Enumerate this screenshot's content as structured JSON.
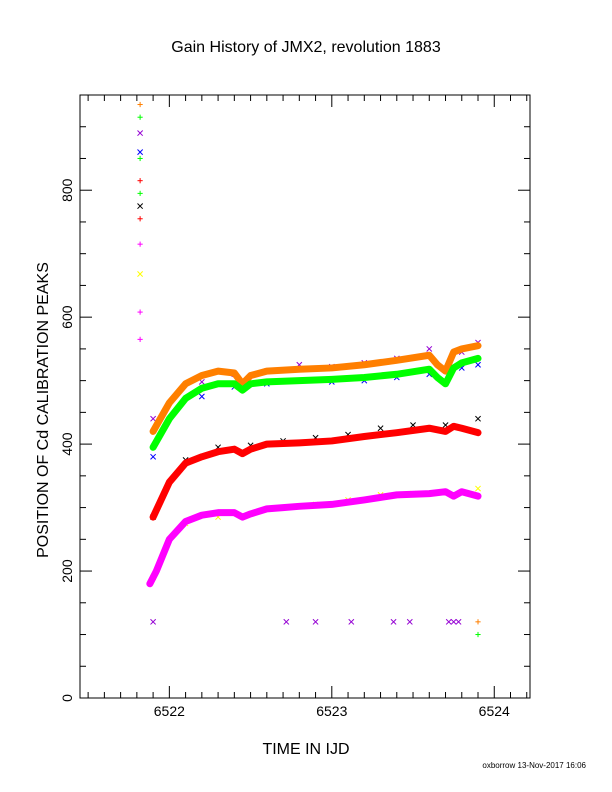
{
  "chart_data": {
    "type": "scatter",
    "title": "Gain History of JMX2, revolution 1883",
    "xlabel": "TIME IN IJD",
    "ylabel": "POSITION OF Cd CALIBRATION PEAKS",
    "xlim": [
      6521.45,
      6524.22
    ],
    "ylim": [
      0,
      950
    ],
    "xticks": [
      6522,
      6523,
      6524
    ],
    "yticks": [
      0,
      200,
      400,
      600,
      800
    ],
    "grid": false,
    "colors": {
      "orange": "#ff7f00",
      "purple": "#9400d3",
      "green": "#00ff00",
      "blue": "#0000ff",
      "red": "#ff0000",
      "black": "#000000",
      "magenta": "#ff00ff",
      "yellow": "#ffff00"
    },
    "series": [
      {
        "color": "purple",
        "marker": "x",
        "x": [
          6521.9,
          6522.2,
          6522.4,
          6522.6,
          6522.8,
          6523.0,
          6523.2,
          6523.4,
          6523.6,
          6523.8,
          6523.9
        ],
        "y": [
          440,
          498,
          510,
          515,
          525,
          522,
          528,
          535,
          550,
          545,
          560
        ]
      },
      {
        "color": "orange",
        "marker": "line",
        "x": [
          6521.9,
          6522.0,
          6522.1,
          6522.2,
          6522.3,
          6522.4,
          6522.45,
          6522.5,
          6522.6,
          6522.8,
          6523.0,
          6523.2,
          6523.4,
          6523.6,
          6523.65,
          6523.7,
          6523.75,
          6523.8,
          6523.9
        ],
        "y": [
          420,
          465,
          495,
          508,
          515,
          512,
          495,
          508,
          515,
          518,
          520,
          525,
          532,
          540,
          525,
          515,
          545,
          550,
          555
        ]
      },
      {
        "color": "blue",
        "marker": "x",
        "x": [
          6521.9,
          6522.2,
          6522.4,
          6522.6,
          6522.8,
          6523.0,
          6523.2,
          6523.4,
          6523.6,
          6523.8,
          6523.9
        ],
        "y": [
          380,
          475,
          490,
          495,
          500,
          498,
          500,
          505,
          510,
          520,
          525
        ]
      },
      {
        "color": "green",
        "marker": "line",
        "x": [
          6521.9,
          6522.0,
          6522.1,
          6522.2,
          6522.3,
          6522.4,
          6522.45,
          6522.5,
          6522.6,
          6522.8,
          6523.0,
          6523.2,
          6523.4,
          6523.6,
          6523.65,
          6523.7,
          6523.75,
          6523.8,
          6523.9
        ],
        "y": [
          395,
          440,
          472,
          488,
          495,
          495,
          485,
          495,
          498,
          500,
          502,
          505,
          510,
          518,
          505,
          495,
          520,
          528,
          535
        ]
      },
      {
        "color": "black",
        "marker": "x",
        "x": [
          6521.9,
          6522.1,
          6522.3,
          6522.5,
          6522.7,
          6522.9,
          6523.1,
          6523.3,
          6523.5,
          6523.7,
          6523.9
        ],
        "y": [
          285,
          375,
          395,
          398,
          405,
          410,
          415,
          425,
          430,
          430,
          440
        ]
      },
      {
        "color": "red",
        "marker": "line",
        "x": [
          6521.9,
          6522.0,
          6522.1,
          6522.2,
          6522.3,
          6522.4,
          6522.45,
          6522.5,
          6522.6,
          6522.8,
          6523.0,
          6523.2,
          6523.4,
          6523.6,
          6523.7,
          6523.75,
          6523.8,
          6523.9
        ],
        "y": [
          285,
          340,
          370,
          380,
          388,
          392,
          385,
          392,
          400,
          402,
          405,
          412,
          418,
          425,
          420,
          428,
          425,
          418
        ]
      },
      {
        "color": "yellow",
        "marker": "x",
        "x": [
          6521.9,
          6522.1,
          6522.3,
          6522.5,
          6522.7,
          6522.9,
          6523.1,
          6523.3,
          6523.5,
          6523.7,
          6523.9
        ],
        "y": [
          190,
          275,
          285,
          290,
          300,
          305,
          312,
          320,
          322,
          325,
          330
        ]
      },
      {
        "color": "magenta",
        "marker": "line",
        "x": [
          6521.88,
          6521.92,
          6522.0,
          6522.1,
          6522.2,
          6522.3,
          6522.4,
          6522.45,
          6522.5,
          6522.6,
          6522.7,
          6522.8,
          6523.0,
          6523.2,
          6523.4,
          6523.6,
          6523.7,
          6523.75,
          6523.8,
          6523.9
        ],
        "y": [
          180,
          200,
          250,
          278,
          288,
          292,
          292,
          285,
          290,
          298,
          300,
          302,
          305,
          312,
          320,
          322,
          325,
          318,
          325,
          318
        ]
      }
    ],
    "early_points": [
      {
        "color": "orange",
        "marker": "+",
        "x": 6521.82,
        "y": 935
      },
      {
        "color": "green",
        "marker": "+",
        "x": 6521.82,
        "y": 915
      },
      {
        "color": "purple",
        "marker": "x",
        "x": 6521.82,
        "y": 890
      },
      {
        "color": "blue",
        "marker": "x",
        "x": 6521.82,
        "y": 860
      },
      {
        "color": "green",
        "marker": "+",
        "x": 6521.82,
        "y": 850
      },
      {
        "color": "red",
        "marker": "+",
        "x": 6521.82,
        "y": 815
      },
      {
        "color": "green",
        "marker": "+",
        "x": 6521.82,
        "y": 795
      },
      {
        "color": "black",
        "marker": "x",
        "x": 6521.82,
        "y": 775
      },
      {
        "color": "red",
        "marker": "+",
        "x": 6521.82,
        "y": 755
      },
      {
        "color": "magenta",
        "marker": "+",
        "x": 6521.82,
        "y": 715
      },
      {
        "color": "yellow",
        "marker": "x",
        "x": 6521.82,
        "y": 668
      },
      {
        "color": "magenta",
        "marker": "+",
        "x": 6521.82,
        "y": 608
      },
      {
        "color": "magenta",
        "marker": "+",
        "x": 6521.82,
        "y": 565
      }
    ],
    "low_points": [
      {
        "color": "purple",
        "marker": "x",
        "x": 6521.9,
        "y": 120
      },
      {
        "color": "purple",
        "marker": "x",
        "x": 6522.72,
        "y": 120
      },
      {
        "color": "purple",
        "marker": "x",
        "x": 6522.9,
        "y": 120
      },
      {
        "color": "purple",
        "marker": "x",
        "x": 6523.12,
        "y": 120
      },
      {
        "color": "purple",
        "marker": "x",
        "x": 6523.38,
        "y": 120
      },
      {
        "color": "purple",
        "marker": "x",
        "x": 6523.48,
        "y": 120
      },
      {
        "color": "purple",
        "marker": "x",
        "x": 6523.72,
        "y": 120
      },
      {
        "color": "purple",
        "marker": "x",
        "x": 6523.75,
        "y": 120
      },
      {
        "color": "purple",
        "marker": "x",
        "x": 6523.78,
        "y": 120
      },
      {
        "color": "orange",
        "marker": "+",
        "x": 6523.9,
        "y": 120
      },
      {
        "color": "green",
        "marker": "+",
        "x": 6523.9,
        "y": 100
      }
    ]
  },
  "footer": {
    "credit": "oxborrow 13-Nov-2017 16:06"
  }
}
